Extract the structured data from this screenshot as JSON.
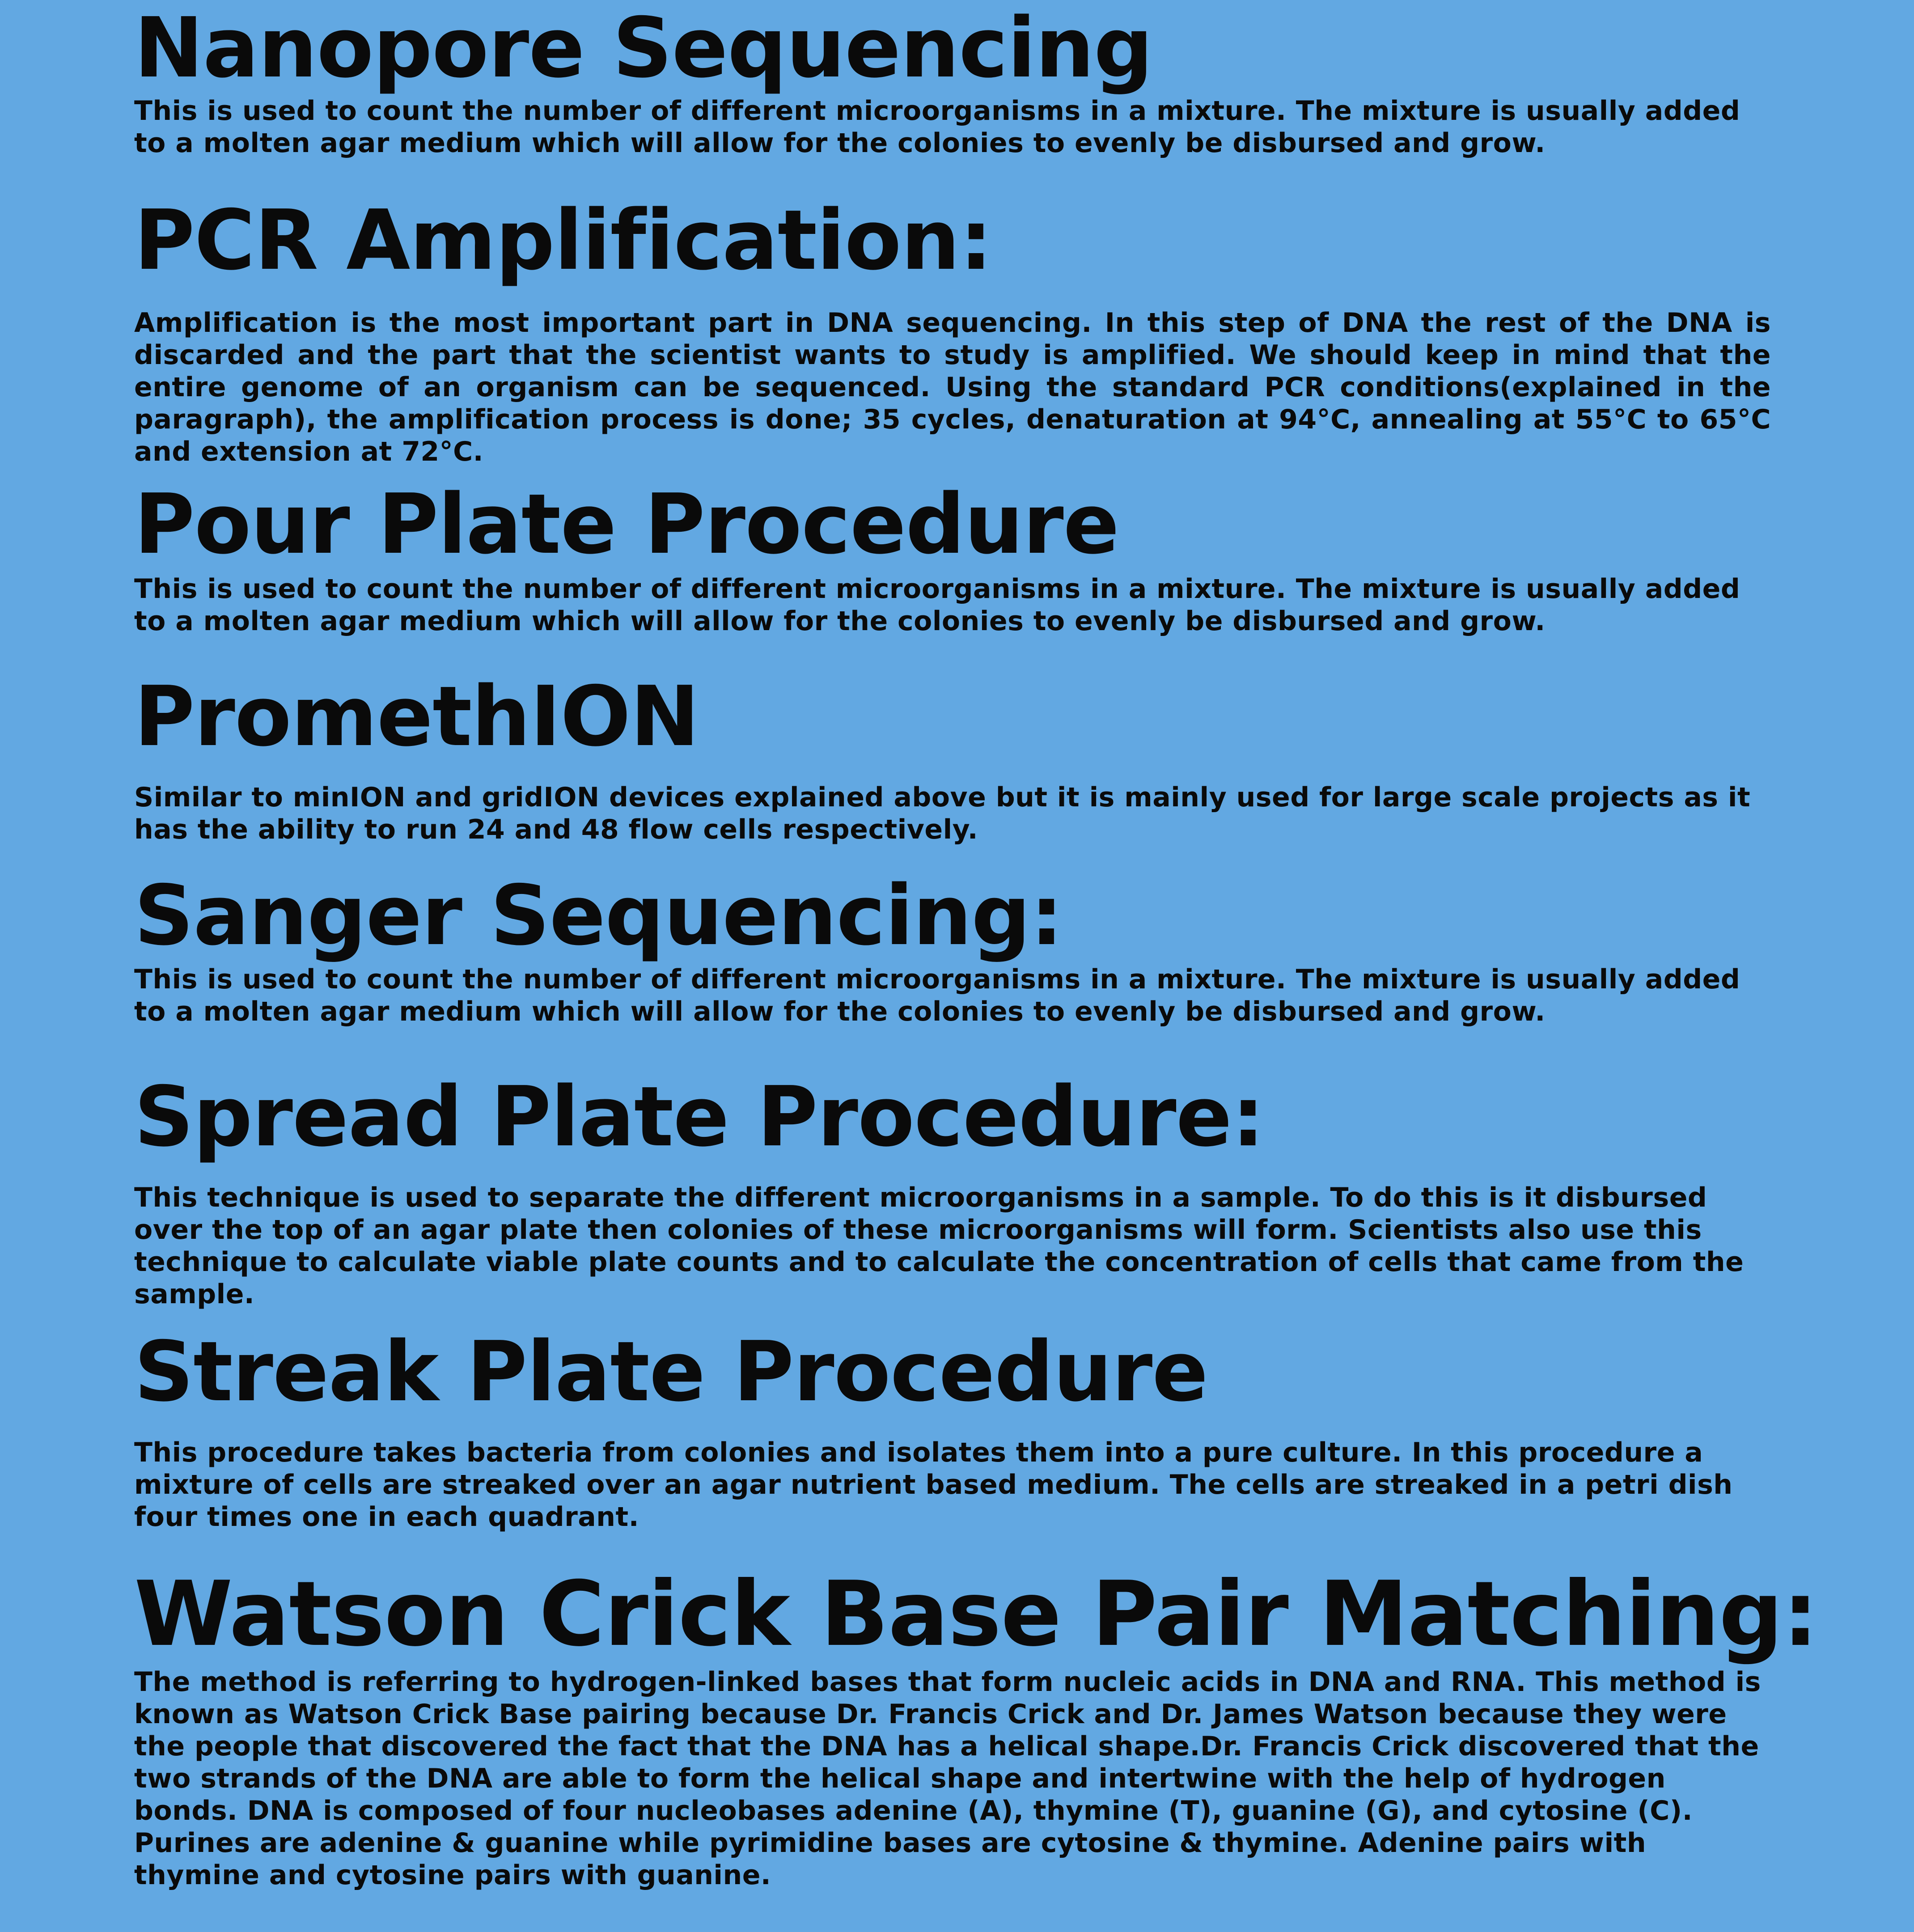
{
  "sections": [
    {
      "title": "Nanopore Sequencing",
      "text": "This is used to count the number of different microorganisms in a mixture. The mixture is usually added to a molten agar medium which will allow for the colonies to evenly be disbursed and grow."
    },
    {
      "title": "PCR Amplification:",
      "text": "Amplification is the most important part in DNA sequencing. In this step of DNA the rest of the DNA is discarded and the part that the scientist wants to study is amplified. We should keep in mind that the entire genome of an organism can be sequenced. Using the standard PCR conditions(explained in the paragraph), the amplification process is done; 35 cycles, denaturation at 94°C, annealing at 55°C to 65°C and extension at 72°C."
    },
    {
      "title": "Pour Plate Procedure",
      "text": "This is used to count the number of different microorganisms in a mixture. The mixture is usually added to a molten agar medium which will allow for the colonies to evenly be disbursed and grow."
    },
    {
      "title": "PromethION",
      "text": "Similar to minION and gridION devices explained above but it is mainly used for large scale projects as it has the ability to run 24 and 48 flow cells respectively."
    },
    {
      "title": "Sanger Sequencing:",
      "text": "This is used to count the number of different microorganisms in a mixture. The mixture is usually added to a molten agar medium which will allow for the colonies to evenly be disbursed and grow."
    },
    {
      "title": "Spread Plate Procedure:",
      "text": "This technique is used to separate the different microorganisms in a sample. To do this is it disbursed over the top of an agar plate then colonies of these microorganisms will form. Scientists also use this technique to calculate viable plate counts and to calculate the concentration of cells that came from the sample."
    },
    {
      "title": "Streak Plate Procedure",
      "text": "This procedure takes bacteria from colonies and isolates them into a pure culture. In this procedure a mixture of cells are streaked over an agar nutrient based medium. The cells are streaked in a petri dish four times one in each quadrant."
    },
    {
      "title": "Watson Crick Base Pair Matching:",
      "text": "The method is referring to hydrogen-linked bases that form nucleic acids in DNA and RNA. This method is known as Watson Crick Base pairing because Dr. Francis Crick and Dr. James Watson because they were the people that discovered the fact that the DNA has a helical shape.Dr. Francis Crick discovered that the two strands of the DNA are able to form the helical shape and intertwine with the help of hydrogen bonds. DNA is composed of four nucleobases adenine (A), thymine (T), guanine (G), and cytosine (C). Purines are adenine & guanine while pyrimidine bases are cytosine & thymine. Adenine pairs with thymine and cytosine pairs with guanine."
    }
  ]
}
